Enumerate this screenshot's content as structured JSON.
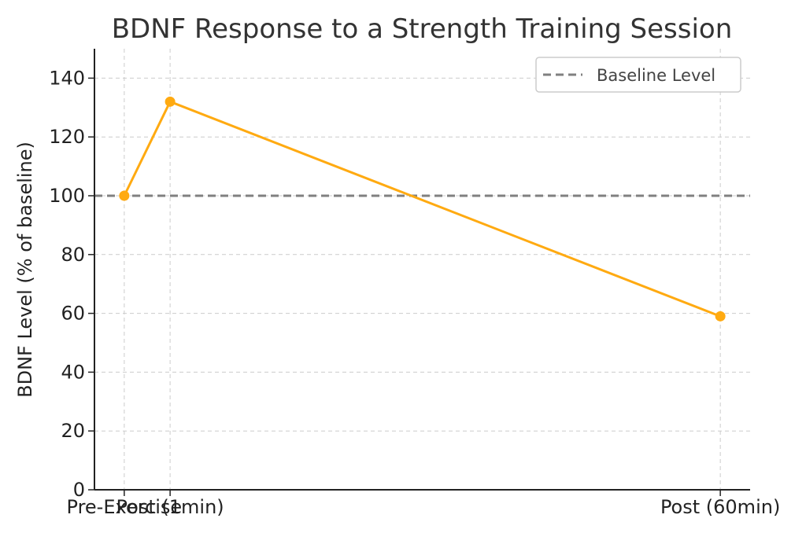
{
  "chart_data": {
    "type": "line",
    "title": "BDNF Response to a Strength Training Session",
    "xlabel": "",
    "ylabel": "BDNF Level (% of baseline)",
    "x_positions": [
      0,
      1,
      13
    ],
    "categories": [
      "Pre-Exercise",
      "Post (1min)",
      "Post (60min)"
    ],
    "series": [
      {
        "values": [
          100,
          132,
          59
        ],
        "color": "#FFAA11"
      }
    ],
    "reference_line": {
      "name": "Baseline Level",
      "value": 100,
      "color": "#808080",
      "style": "dashed"
    },
    "xlim": [
      -0.65,
      13.65
    ],
    "ylim": [
      0,
      150
    ],
    "yticks": [
      0,
      20,
      40,
      60,
      80,
      100,
      120,
      140
    ],
    "grid": true,
    "legend": "top-right"
  }
}
